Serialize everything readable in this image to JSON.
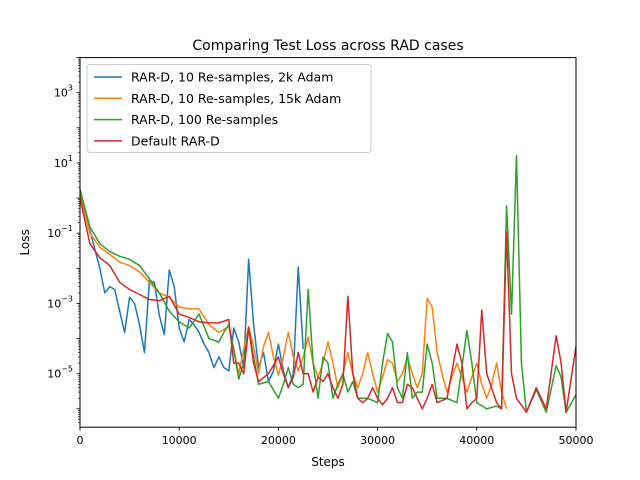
{
  "chart_data": {
    "type": "line",
    "title": "Comparing Test Loss across RAD cases",
    "xlabel": "Steps",
    "ylabel": "Loss",
    "xlim": [
      0,
      50000
    ],
    "ylim": [
      3e-07,
      10000
    ],
    "yscale": "log",
    "x_ticks": [
      {
        "value": 0,
        "label": "0"
      },
      {
        "value": 10000,
        "label": "10000"
      },
      {
        "value": 20000,
        "label": "20000"
      },
      {
        "value": 30000,
        "label": "30000"
      },
      {
        "value": 40000,
        "label": "40000"
      },
      {
        "value": 50000,
        "label": "50000"
      }
    ],
    "y_ticks": [
      {
        "value": 1e-05,
        "base": "10",
        "exp": "−5"
      },
      {
        "value": 0.001,
        "base": "10",
        "exp": "−3"
      },
      {
        "value": 0.1,
        "base": "10",
        "exp": "−1"
      },
      {
        "value": 10,
        "base": "10",
        "exp": "1"
      },
      {
        "value": 1000,
        "base": "10",
        "exp": "3"
      }
    ],
    "grid": false,
    "legend_position": "top-left",
    "series": [
      {
        "name": "RAR-D, 10 Re-samples, 2k Adam",
        "color": "#1f77b4",
        "points": [
          [
            0,
            1.5
          ],
          [
            1000,
            0.12
          ],
          [
            2000,
            0.01
          ],
          [
            2500,
            0.002
          ],
          [
            3000,
            0.003
          ],
          [
            3500,
            0.0025
          ],
          [
            4000,
            0.0006
          ],
          [
            4500,
            0.00015
          ],
          [
            5000,
            0.0015
          ],
          [
            5500,
            0.001
          ],
          [
            6000,
            0.00025
          ],
          [
            6500,
            4e-05
          ],
          [
            7000,
            0.0045
          ],
          [
            7500,
            0.004
          ],
          [
            8000,
            0.00045
          ],
          [
            8500,
            0.00013
          ],
          [
            9000,
            0.009
          ],
          [
            9500,
            0.003
          ],
          [
            10000,
            0.0002
          ],
          [
            10500,
            8e-05
          ],
          [
            11000,
            0.00035
          ],
          [
            11500,
            0.00025
          ],
          [
            12000,
            0.00015
          ],
          [
            12500,
            7e-05
          ],
          [
            13000,
            4e-05
          ],
          [
            13500,
            1.5e-05
          ],
          [
            14000,
            3e-05
          ],
          [
            14500,
            1.5e-05
          ],
          [
            15000,
            1.2e-05
          ],
          [
            15500,
            0.0002
          ],
          [
            16000,
            8e-05
          ],
          [
            16500,
            1.5e-05
          ],
          [
            17000,
            0.018
          ],
          [
            17500,
            0.00025
          ],
          [
            18000,
            1.5e-05
          ],
          [
            18500,
            4e-05
          ],
          [
            19000,
            6e-06
          ],
          [
            19500,
            1.2e-05
          ],
          [
            20000,
            7e-05
          ],
          [
            20500,
            1.2e-05
          ],
          [
            21000,
            4e-06
          ],
          [
            21500,
            1e-05
          ],
          [
            22000,
            0.011
          ],
          [
            22500,
            5e-05
          ]
        ]
      },
      {
        "name": "RAR-D, 10 Re-samples, 15k Adam",
        "color": "#ff7f0e",
        "points": [
          [
            0,
            1.2
          ],
          [
            1000,
            0.1
          ],
          [
            2000,
            0.04
          ],
          [
            3000,
            0.025
          ],
          [
            4000,
            0.015
          ],
          [
            5000,
            0.012
          ],
          [
            6000,
            0.008
          ],
          [
            7000,
            0.004
          ],
          [
            8000,
            0.002
          ],
          [
            9000,
            0.0015
          ],
          [
            10000,
            0.0008
          ],
          [
            11000,
            0.0007
          ],
          [
            12000,
            0.0007
          ],
          [
            13000,
            0.00025
          ],
          [
            14000,
            0.00015
          ],
          [
            15000,
            0.00022
          ],
          [
            15500,
            5e-05
          ],
          [
            16000,
            1e-05
          ],
          [
            16500,
            5e-05
          ],
          [
            17000,
            0.00022
          ],
          [
            17500,
            6e-05
          ],
          [
            18000,
            1e-05
          ],
          [
            18500,
            6e-05
          ],
          [
            19000,
            0.00015
          ],
          [
            19500,
            3e-05
          ],
          [
            20000,
            9e-06
          ],
          [
            20500,
            3e-05
          ],
          [
            21000,
            0.00015
          ],
          [
            21500,
            3e-05
          ],
          [
            22000,
            1.2e-05
          ],
          [
            22500,
            3e-05
          ],
          [
            23000,
            0.00011
          ],
          [
            23500,
            2e-05
          ],
          [
            24000,
            8e-06
          ],
          [
            24500,
            2e-05
          ],
          [
            25000,
            8e-05
          ],
          [
            25500,
            2e-05
          ],
          [
            26000,
            4e-06
          ],
          [
            26500,
            1e-05
          ],
          [
            27000,
            4e-05
          ],
          [
            27500,
            1e-05
          ],
          [
            28000,
            4e-06
          ],
          [
            28500,
            1e-05
          ],
          [
            29000,
            4e-05
          ],
          [
            29500,
            1e-05
          ],
          [
            30000,
            3e-06
          ],
          [
            30500,
            8e-06
          ],
          [
            31000,
            2.5e-05
          ],
          [
            31500,
            2e-05
          ],
          [
            32000,
            6e-06
          ],
          [
            32500,
            1e-05
          ],
          [
            33000,
            3e-05
          ],
          [
            33500,
            1e-05
          ],
          [
            34000,
            4e-06
          ],
          [
            34500,
            1e-05
          ],
          [
            35000,
            0.0014
          ],
          [
            35500,
            0.0008
          ],
          [
            36000,
            4e-05
          ],
          [
            36500,
            1e-05
          ],
          [
            37000,
            3e-06
          ],
          [
            37500,
            8e-06
          ],
          [
            38000,
            2e-05
          ],
          [
            38500,
            8e-06
          ],
          [
            39000,
            3e-06
          ],
          [
            39500,
            8e-06
          ],
          [
            40000,
            2e-05
          ],
          [
            40500,
            5e-06
          ],
          [
            41000,
            2e-06
          ],
          [
            41500,
            5e-06
          ],
          [
            42000,
            2e-05
          ],
          [
            42500,
            3e-06
          ],
          [
            43000,
            1e-06
          ]
        ]
      },
      {
        "name": "RAR-D, 100 Re-samples",
        "color": "#2ca02c",
        "points": [
          [
            0,
            1.8
          ],
          [
            1000,
            0.15
          ],
          [
            2000,
            0.05
          ],
          [
            3000,
            0.03
          ],
          [
            4000,
            0.022
          ],
          [
            5000,
            0.018
          ],
          [
            6000,
            0.012
          ],
          [
            7000,
            0.005
          ],
          [
            8000,
            0.002
          ],
          [
            9000,
            0.0006
          ],
          [
            10000,
            0.0003
          ],
          [
            11000,
            0.0002
          ],
          [
            12000,
            0.0005
          ],
          [
            13000,
            0.0001
          ],
          [
            14000,
            8e-05
          ],
          [
            14500,
            0.00015
          ],
          [
            15000,
            0.00025
          ],
          [
            15500,
            5e-05
          ],
          [
            16000,
            7e-06
          ],
          [
            16500,
            2e-05
          ],
          [
            17000,
            0.0002
          ],
          [
            17500,
            3e-05
          ],
          [
            18000,
            5e-06
          ],
          [
            19000,
            6e-06
          ],
          [
            20000,
            2e-06
          ],
          [
            20500,
            5e-06
          ],
          [
            21000,
            1.5e-05
          ],
          [
            21500,
            5e-06
          ],
          [
            22000,
            4e-06
          ],
          [
            22500,
            5e-06
          ],
          [
            23000,
            0.0025
          ],
          [
            23500,
            2e-05
          ],
          [
            24000,
            2e-06
          ],
          [
            24500,
            3e-05
          ],
          [
            25000,
            2e-05
          ],
          [
            25500,
            2e-06
          ],
          [
            26000,
            5e-06
          ],
          [
            26500,
            1e-05
          ],
          [
            27000,
            3e-06
          ],
          [
            27500,
            6e-06
          ],
          [
            28000,
            2e-06
          ],
          [
            29000,
            2e-06
          ],
          [
            30000,
            1.5e-06
          ],
          [
            30500,
            2e-05
          ],
          [
            31000,
            0.00014
          ],
          [
            31500,
            8e-05
          ],
          [
            32000,
            4e-06
          ],
          [
            32500,
            2e-06
          ],
          [
            33000,
            4e-05
          ],
          [
            33500,
            2e-06
          ],
          [
            34000,
            3e-06
          ],
          [
            34500,
            3e-06
          ],
          [
            35000,
            7e-05
          ],
          [
            35500,
            2e-05
          ],
          [
            36000,
            2e-06
          ],
          [
            37000,
            2e-06
          ],
          [
            38000,
            1.5e-06
          ],
          [
            39000,
            0.00017
          ],
          [
            39500,
            2e-05
          ],
          [
            40000,
            1.5e-06
          ],
          [
            41000,
            1e-06
          ],
          [
            42000,
            1.2e-06
          ],
          [
            42500,
            1e-06
          ],
          [
            43000,
            0.6
          ],
          [
            43500,
            0.0005
          ],
          [
            44000,
            16
          ],
          [
            44500,
            2e-05
          ],
          [
            45000,
            8e-07
          ],
          [
            46000,
            3.5e-06
          ],
          [
            47000,
            8e-07
          ],
          [
            48000,
            1.7e-05
          ],
          [
            48500,
            8e-06
          ],
          [
            49000,
            8e-07
          ],
          [
            50000,
            2.5e-06
          ]
        ]
      },
      {
        "name": "Default RAR-D",
        "color": "#d62728",
        "points": [
          [
            0,
            1.0
          ],
          [
            1000,
            0.05
          ],
          [
            2000,
            0.02
          ],
          [
            3000,
            0.012
          ],
          [
            4000,
            0.004
          ],
          [
            5000,
            0.0025
          ],
          [
            6000,
            0.0018
          ],
          [
            7000,
            0.0013
          ],
          [
            8000,
            0.0012
          ],
          [
            9000,
            0.0016
          ],
          [
            10000,
            0.0005
          ],
          [
            11000,
            0.0004
          ],
          [
            12000,
            0.0003
          ],
          [
            13000,
            0.00028
          ],
          [
            14000,
            0.00028
          ],
          [
            15000,
            0.00035
          ],
          [
            15500,
            2e-05
          ],
          [
            16000,
            2e-05
          ],
          [
            16500,
            1e-05
          ],
          [
            17000,
            0.0002
          ],
          [
            17500,
            2e-05
          ],
          [
            18000,
            6e-06
          ],
          [
            19000,
            1e-05
          ],
          [
            20000,
            3e-05
          ],
          [
            20500,
            1e-05
          ],
          [
            21000,
            4e-06
          ],
          [
            21500,
            8e-06
          ],
          [
            22000,
            4e-05
          ],
          [
            22500,
            1e-05
          ],
          [
            23000,
            1e-05
          ],
          [
            23500,
            3e-06
          ],
          [
            24000,
            8e-06
          ],
          [
            24500,
            6e-06
          ],
          [
            25000,
            1e-05
          ],
          [
            25500,
            4e-06
          ],
          [
            26000,
            2e-06
          ],
          [
            26500,
            5e-06
          ],
          [
            27000,
            0.0016
          ],
          [
            27500,
            1e-05
          ],
          [
            28000,
            2e-06
          ],
          [
            28500,
            1.5e-06
          ],
          [
            29000,
            2e-06
          ],
          [
            29500,
            4e-06
          ],
          [
            30000,
            2e-06
          ],
          [
            30500,
            1.3e-06
          ],
          [
            31000,
            2e-06
          ],
          [
            31500,
            4e-06
          ],
          [
            32000,
            1.5e-06
          ],
          [
            32500,
            1.5e-06
          ],
          [
            33000,
            5e-06
          ],
          [
            33500,
            4e-06
          ],
          [
            34000,
            2e-06
          ],
          [
            34500,
            1e-06
          ],
          [
            35000,
            2e-06
          ],
          [
            35500,
            5e-06
          ],
          [
            36000,
            1.5e-06
          ],
          [
            37000,
            2e-06
          ],
          [
            38000,
            7e-05
          ],
          [
            38500,
            2e-05
          ],
          [
            39000,
            1e-06
          ],
          [
            39500,
            1.5e-06
          ],
          [
            40000,
            2e-06
          ],
          [
            40500,
            0.00065
          ],
          [
            41000,
            1e-05
          ],
          [
            42000,
            1.5e-06
          ],
          [
            42500,
            1e-06
          ],
          [
            43000,
            0.11
          ],
          [
            43500,
            1e-05
          ],
          [
            44000,
            2e-06
          ],
          [
            45000,
            8e-07
          ],
          [
            46000,
            4e-06
          ],
          [
            47000,
            1e-06
          ],
          [
            48000,
            0.00012
          ],
          [
            48500,
            2e-05
          ],
          [
            49000,
            8e-07
          ],
          [
            50000,
            6e-05
          ]
        ]
      }
    ]
  }
}
